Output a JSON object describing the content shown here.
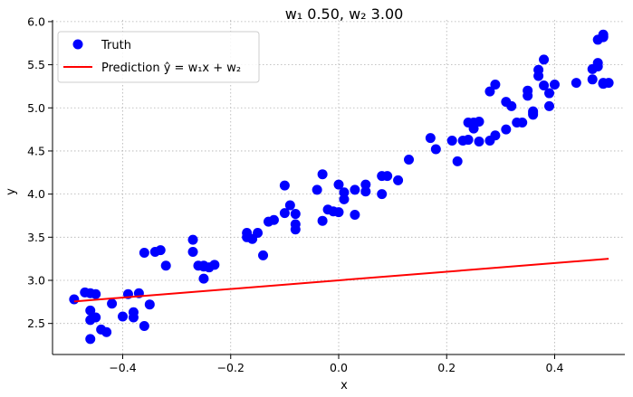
{
  "chart_data": {
    "type": "scatter",
    "title": "w₁ 0.50, w₂ 3.00",
    "xlabel": "x",
    "ylabel": "y",
    "xlim": [
      -0.53,
      0.53
    ],
    "ylim": [
      2.14,
      6.02
    ],
    "xticks": [
      -0.4,
      -0.2,
      0.0,
      0.2,
      0.4
    ],
    "xtick_labels": [
      "−0.4",
      "−0.2",
      "0.0",
      "0.2",
      "0.4"
    ],
    "yticks": [
      2.5,
      3.0,
      3.5,
      4.0,
      4.5,
      5.0,
      5.5,
      6.0
    ],
    "ytick_labels": [
      "2.5",
      "3.0",
      "3.5",
      "4.0",
      "4.5",
      "5.0",
      "5.5",
      "6.0"
    ],
    "grid": true,
    "legend_position": "top-left",
    "colors": {
      "truth": "#0000ff",
      "prediction": "#ff0000",
      "grid": "#b0b0b0"
    },
    "series": [
      {
        "name": "Truth",
        "kind": "scatter",
        "x": [
          -0.49,
          -0.47,
          -0.46,
          -0.45,
          -0.46,
          -0.46,
          -0.45,
          -0.44,
          -0.46,
          -0.43,
          -0.42,
          -0.4,
          -0.39,
          -0.38,
          -0.38,
          -0.37,
          -0.36,
          -0.35,
          -0.36,
          -0.33,
          -0.34,
          -0.32,
          -0.27,
          -0.27,
          -0.26,
          -0.25,
          -0.25,
          -0.24,
          -0.23,
          -0.25,
          -0.17,
          -0.17,
          -0.16,
          -0.15,
          -0.14,
          -0.13,
          -0.12,
          -0.1,
          -0.1,
          -0.09,
          -0.08,
          -0.08,
          -0.08,
          -0.04,
          -0.03,
          -0.03,
          -0.02,
          -0.01,
          0.0,
          0.0,
          0.01,
          0.01,
          0.03,
          0.03,
          0.05,
          0.05,
          0.08,
          0.08,
          0.09,
          0.11,
          0.13,
          0.17,
          0.18,
          0.21,
          0.22,
          0.23,
          0.24,
          0.24,
          0.25,
          0.25,
          0.26,
          0.26,
          0.28,
          0.28,
          0.29,
          0.29,
          0.31,
          0.31,
          0.32,
          0.33,
          0.34,
          0.35,
          0.35,
          0.36,
          0.36,
          0.36,
          0.37,
          0.37,
          0.38,
          0.38,
          0.39,
          0.39,
          0.4,
          0.44,
          0.47,
          0.48,
          0.48,
          0.49,
          0.49,
          0.49,
          0.5,
          0.47,
          0.48,
          0.49,
          0.49,
          0.49
        ],
        "y": [
          2.78,
          2.86,
          2.85,
          2.84,
          2.65,
          2.54,
          2.57,
          2.43,
          2.32,
          2.4,
          2.73,
          2.58,
          2.84,
          2.63,
          2.57,
          2.85,
          2.47,
          2.72,
          3.32,
          3.35,
          3.33,
          3.17,
          3.47,
          3.33,
          3.17,
          3.17,
          3.02,
          3.15,
          3.18,
          3.16,
          3.55,
          3.5,
          3.48,
          3.55,
          3.29,
          3.68,
          3.7,
          4.1,
          3.78,
          3.87,
          3.77,
          3.65,
          3.59,
          4.05,
          4.23,
          3.69,
          3.82,
          3.8,
          4.11,
          3.79,
          4.02,
          3.94,
          4.05,
          3.76,
          4.11,
          4.03,
          4.0,
          4.21,
          4.21,
          4.16,
          4.4,
          4.65,
          4.52,
          4.62,
          4.38,
          4.62,
          4.83,
          4.63,
          4.83,
          4.76,
          4.61,
          4.84,
          4.62,
          5.19,
          5.27,
          4.68,
          5.07,
          4.75,
          5.02,
          4.83,
          4.83,
          5.14,
          5.2,
          4.94,
          4.92,
          4.96,
          5.37,
          5.44,
          5.56,
          5.26,
          5.17,
          5.02,
          5.27,
          5.29,
          5.45,
          5.52,
          5.79,
          5.82,
          5.85,
          5.29,
          5.29,
          5.33,
          5.48,
          5.83,
          5.28,
          5.28
        ]
      },
      {
        "name": "Prediction ŷ = w₁x + w₂",
        "kind": "line",
        "x": [
          -0.49,
          0.5
        ],
        "y": [
          2.755,
          3.25
        ]
      }
    ]
  }
}
